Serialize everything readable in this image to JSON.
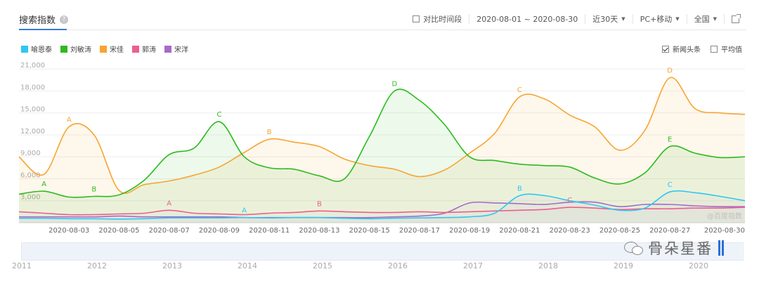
{
  "header": {
    "title": "搜索指数",
    "help_icon": "?",
    "compare_label": "对比时间段",
    "date_range": "2020-08-01 ~ 2020-08-30",
    "period": "近30天",
    "device": "PC+移动",
    "region": "全国"
  },
  "options": {
    "news_label": "新闻头条",
    "news_checked": true,
    "avg_label": "平均值",
    "avg_checked": false
  },
  "watermark": {
    "text": "骨朵星番",
    "inner": "@百度指数"
  },
  "slider_years": [
    "2011",
    "2012",
    "2013",
    "2014",
    "2015",
    "2016",
    "2017",
    "2018",
    "2019",
    "2020"
  ],
  "chart_data": {
    "type": "area",
    "yticks": [
      3000,
      6000,
      9000,
      12000,
      15000,
      18000,
      21000
    ],
    "ytick_labels": [
      "3,000",
      "6,000",
      "9,000",
      "12,000",
      "15,000",
      "18,000",
      "21,000"
    ],
    "ylim": [
      0,
      21500
    ],
    "grid": true,
    "legend_position": "top-left",
    "x": [
      "2020-08-01",
      "2020-08-02",
      "2020-08-03",
      "2020-08-04",
      "2020-08-05",
      "2020-08-06",
      "2020-08-07",
      "2020-08-08",
      "2020-08-09",
      "2020-08-10",
      "2020-08-11",
      "2020-08-12",
      "2020-08-13",
      "2020-08-14",
      "2020-08-15",
      "2020-08-16",
      "2020-08-17",
      "2020-08-18",
      "2020-08-19",
      "2020-08-20",
      "2020-08-21",
      "2020-08-22",
      "2020-08-23",
      "2020-08-24",
      "2020-08-25",
      "2020-08-26",
      "2020-08-27",
      "2020-08-28",
      "2020-08-29",
      "2020-08-30"
    ],
    "xtick_labels": [
      "2020-08-03",
      "2020-08-05",
      "2020-08-07",
      "2020-08-09",
      "2020-08-11",
      "2020-08-13",
      "2020-08-15",
      "2020-08-17",
      "2020-08-19",
      "2020-08-21",
      "2020-08-23",
      "2020-08-25",
      "2020-08-27",
      "2020-08-30"
    ],
    "series": [
      {
        "name": "喻恩泰",
        "color": "#2ec7f4",
        "fill": false,
        "values": [
          600,
          600,
          550,
          550,
          500,
          550,
          650,
          650,
          650,
          700,
          650,
          700,
          700,
          600,
          550,
          600,
          650,
          700,
          800,
          1300,
          3700,
          3700,
          3000,
          2400,
          1700,
          2000,
          4200,
          4100,
          3600,
          3000
        ]
      },
      {
        "name": "刘敏涛",
        "color": "#2dbb1f",
        "fill": true,
        "values": [
          3900,
          4300,
          3500,
          3600,
          3800,
          5800,
          9300,
          10200,
          13800,
          9000,
          7500,
          7300,
          6400,
          6000,
          11800,
          18000,
          16700,
          13400,
          9000,
          8500,
          8000,
          7800,
          7600,
          6100,
          5300,
          6800,
          10400,
          9500,
          8900,
          9000
        ]
      },
      {
        "name": "宋佳",
        "color": "#f7a531",
        "fill": true,
        "values": [
          9000,
          6600,
          13100,
          12000,
          4400,
          5200,
          5700,
          6500,
          7600,
          9600,
          11400,
          11000,
          10400,
          8700,
          7800,
          7300,
          6300,
          7200,
          9500,
          12200,
          17200,
          16900,
          14700,
          13100,
          9900,
          12600,
          19800,
          15600,
          15000,
          14800
        ]
      },
      {
        "name": "郭涛",
        "color": "#ec5f8e",
        "fill": false,
        "values": [
          1500,
          1300,
          1100,
          1100,
          1200,
          1300,
          1700,
          1300,
          1200,
          1100,
          1300,
          1400,
          1600,
          1500,
          1400,
          1400,
          1500,
          1400,
          1500,
          1600,
          1700,
          1800,
          2100,
          2000,
          1800,
          1900,
          1900,
          2000,
          2000,
          2100
        ]
      },
      {
        "name": "宋洋",
        "color": "#a56bc9",
        "fill": false,
        "values": [
          800,
          800,
          800,
          800,
          900,
          800,
          800,
          800,
          800,
          700,
          700,
          700,
          700,
          700,
          700,
          800,
          900,
          1300,
          2700,
          2700,
          2600,
          2500,
          2800,
          2800,
          2200,
          2500,
          2500,
          2300,
          2200,
          2200
        ]
      }
    ],
    "annotations": [
      {
        "series": "刘敏涛",
        "label": "A",
        "x": "2020-08-02",
        "y": 4300
      },
      {
        "series": "刘敏涛",
        "label": "B",
        "x": "2020-08-04",
        "y": 3600
      },
      {
        "series": "刘敏涛",
        "label": "C",
        "x": "2020-08-09",
        "y": 13800
      },
      {
        "series": "刘敏涛",
        "label": "D",
        "x": "2020-08-16",
        "y": 18000
      },
      {
        "series": "刘敏涛",
        "label": "E",
        "x": "2020-08-27",
        "y": 10400
      },
      {
        "series": "宋佳",
        "label": "A",
        "x": "2020-08-03",
        "y": 13100
      },
      {
        "series": "宋佳",
        "label": "B",
        "x": "2020-08-11",
        "y": 11400
      },
      {
        "series": "宋佳",
        "label": "C",
        "x": "2020-08-21",
        "y": 17200
      },
      {
        "series": "宋佳",
        "label": "D",
        "x": "2020-08-27",
        "y": 19800
      },
      {
        "series": "喻恩泰",
        "label": "A",
        "x": "2020-08-10",
        "y": 700
      },
      {
        "series": "喻恩泰",
        "label": "B",
        "x": "2020-08-21",
        "y": 3700
      },
      {
        "series": "喻恩泰",
        "label": "C",
        "x": "2020-08-27",
        "y": 4200
      },
      {
        "series": "郭涛",
        "label": "A",
        "x": "2020-08-07",
        "y": 1700
      },
      {
        "series": "郭涛",
        "label": "B",
        "x": "2020-08-13",
        "y": 1600
      },
      {
        "series": "郭涛",
        "label": "C",
        "x": "2020-08-23",
        "y": 2100
      }
    ]
  }
}
